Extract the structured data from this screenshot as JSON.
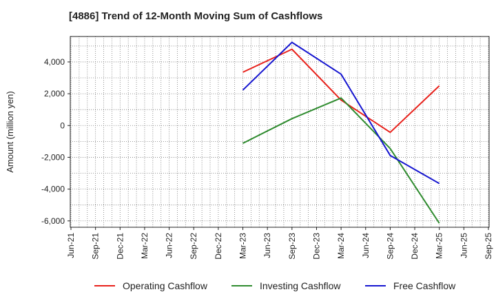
{
  "title": "[4886]  Trend of 12-Month Moving Sum of Cashflows",
  "chart_data": {
    "type": "line",
    "title": "[4886]  Trend of 12-Month Moving Sum of Cashflows",
    "xlabel": "",
    "ylabel": "Amount (million yen)",
    "categories": [
      "Jun-21",
      "Sep-21",
      "Dec-21",
      "Mar-22",
      "Jun-22",
      "Sep-22",
      "Dec-22",
      "Mar-23",
      "Jun-23",
      "Sep-23",
      "Dec-23",
      "Mar-24",
      "Jun-24",
      "Sep-24",
      "Dec-24",
      "Mar-25",
      "Jun-25",
      "Sep-25"
    ],
    "yticks": [
      4000,
      2000,
      0,
      -2000,
      -4000,
      -6000
    ],
    "ytick_labels": [
      "4,000",
      "2,000",
      "0",
      "-2,000",
      "-4,000",
      "-6,000"
    ],
    "ylim": [
      -6400,
      5600
    ],
    "grid": true,
    "legend_position": "bottom",
    "series": [
      {
        "name": "Operating Cashflow",
        "color": "#e8201a",
        "values": [
          null,
          null,
          null,
          null,
          null,
          null,
          null,
          3350,
          null,
          4800,
          null,
          1600,
          null,
          -430,
          null,
          2500,
          null,
          null
        ]
      },
      {
        "name": "Investing Cashflow",
        "color": "#2e8b2e",
        "values": [
          null,
          null,
          null,
          null,
          null,
          null,
          null,
          -1120,
          null,
          430,
          null,
          1730,
          null,
          -1450,
          null,
          -6150,
          null,
          null
        ]
      },
      {
        "name": "Free Cashflow",
        "color": "#1515d0",
        "values": [
          null,
          null,
          null,
          null,
          null,
          null,
          null,
          2230,
          null,
          5230,
          null,
          3230,
          null,
          -1880,
          null,
          -3650,
          null,
          null
        ]
      }
    ]
  }
}
